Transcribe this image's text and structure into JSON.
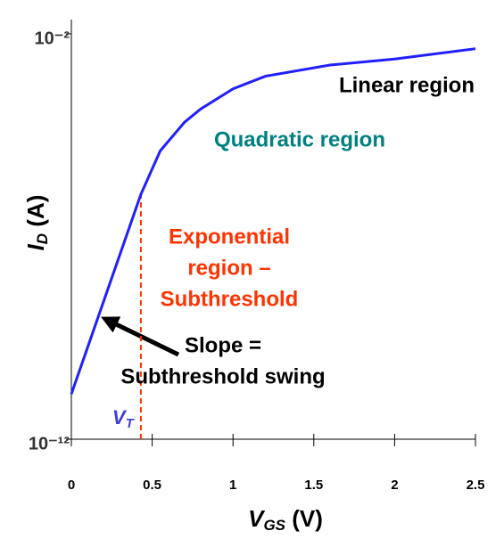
{
  "chart_data": {
    "type": "line",
    "log_y": true,
    "xlabel": {
      "main": "V",
      "sub": "GS",
      "unit": " (V)"
    },
    "ylabel": {
      "main": "I",
      "sub": "D",
      "unit": " (A)"
    },
    "x": [
      0,
      0.43,
      0.55,
      0.7,
      0.8,
      1.0,
      1.2,
      1.6,
      2.0,
      2.5
    ],
    "series": [
      {
        "color": "#1f1fff",
        "values": [
          1.3e-11,
          1.1e-06,
          1.3e-05,
          6.6e-05,
          0.00014,
          0.00044,
          0.0009,
          0.0017,
          0.0024,
          0.0043
        ]
      }
    ],
    "xlim": [
      0,
      2.5
    ],
    "ylim": [
      1e-12,
      0.01
    ],
    "xticks": [
      0,
      0.5,
      1,
      1.5,
      2,
      2.5
    ],
    "yticks": [
      {
        "value": 1e-12,
        "label": "10⁻¹²"
      },
      {
        "value": 0.01,
        "label": "10⁻²"
      }
    ],
    "vline": {
      "x": 0.43,
      "color": "#ff3300",
      "label_main": "V",
      "label_sub": "T",
      "label_color": "#4040d0"
    },
    "annotations": [
      {
        "lines": [
          "Linear region"
        ],
        "color": "#000000"
      },
      {
        "lines": [
          "Quadratic region"
        ],
        "color": "#008080"
      },
      {
        "lines": [
          "Exponential",
          "region –",
          "Subthreshold"
        ],
        "color": "#ff3300"
      },
      {
        "lines": [
          "Slope =",
          "Subthreshold swing"
        ],
        "color": "#000000"
      }
    ]
  }
}
